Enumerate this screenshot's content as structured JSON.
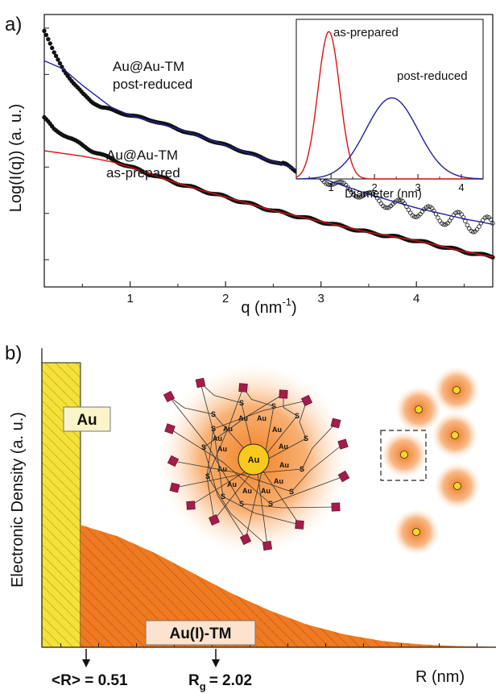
{
  "panel_a": {
    "label": "a)",
    "ylabel": "Log(I(q)) (a. u.)",
    "xlabel_main": "q (nm",
    "xlabel_sup": "-1",
    "xlabel_close": ")",
    "annot_post_line1": "Au@Au-TM",
    "annot_post_line2": "post-reduced",
    "annot_asp_line1": "Au@Au-TM",
    "annot_asp_line2": "as-prepared",
    "inset": {
      "xlabel": "Diameter (nm)",
      "label_asp": "as-prepared",
      "label_post": "post-reduced"
    }
  },
  "panel_b": {
    "label": "b)",
    "ylabel": "Electronic Density (a. u.)",
    "au_box": "Au",
    "auI_box": "Au(I)-TM",
    "core_label": "Au",
    "s_letter": "S",
    "au_letter": "Au",
    "r_marker": "<R> = 0.51",
    "rg_main": "R",
    "rg_sub": "g",
    "rg_value": "= 2.02",
    "xlabel": "R (nm)"
  },
  "colors": {
    "data_points": "#111111",
    "fit_asp": "#dd1111",
    "fit_post": "#22229a",
    "gold_fill": "#f3e23a",
    "shell_fill": "#ef7a22",
    "mol_rect": "#a31d4a"
  },
  "chart_data": [
    {
      "type": "scatter",
      "title": "",
      "xlabel": "q (nm-1)",
      "ylabel": "Log(I(q)) (a. u.)",
      "xlim": [
        0.1,
        4.8
      ],
      "ylim": [
        0.0,
        1.0
      ],
      "y_tick_labels": "none",
      "x_ticks": [
        1,
        2,
        3,
        4
      ],
      "legend": "none",
      "grid": false,
      "series": [
        {
          "name": "Au@Au-TM post-reduced",
          "x": [
            0.1,
            0.2,
            0.3,
            0.4,
            0.5,
            0.6,
            0.7,
            0.8,
            1.0,
            1.25,
            1.5,
            1.75,
            2.0,
            2.5,
            3.0,
            3.5,
            4.0,
            4.5,
            4.8
          ],
          "y": [
            0.94,
            0.86,
            0.8,
            0.75,
            0.71,
            0.68,
            0.66,
            0.65,
            0.63,
            0.61,
            0.58,
            0.55,
            0.52,
            0.46,
            0.4,
            0.33,
            0.28,
            0.24,
            0.22
          ]
        },
        {
          "name": "Au@Au-TM as-prepared",
          "x": [
            0.1,
            0.2,
            0.3,
            0.4,
            0.5,
            0.6,
            0.7,
            0.8,
            1.0,
            1.5,
            2.0,
            2.5,
            3.0,
            3.5,
            4.0,
            4.5,
            4.8
          ],
          "y": [
            0.62,
            0.58,
            0.56,
            0.54,
            0.52,
            0.5,
            0.485,
            0.47,
            0.44,
            0.38,
            0.33,
            0.28,
            0.24,
            0.2,
            0.17,
            0.13,
            0.11
          ]
        }
      ]
    },
    {
      "type": "line",
      "title": "",
      "xlabel": "",
      "ylabel": "Log(I(q)) (a. u.)",
      "xlim": [
        0.1,
        4.8
      ],
      "ylim": [
        0.0,
        1.0
      ],
      "series": [
        {
          "name": "post-reduced fit",
          "x": [
            0.1,
            0.3,
            0.5,
            0.8,
            1.0,
            1.5,
            2.0,
            2.5,
            3.0,
            3.5,
            4.0,
            4.5,
            4.8
          ],
          "y": [
            0.83,
            0.8,
            0.74,
            0.66,
            0.63,
            0.58,
            0.52,
            0.46,
            0.4,
            0.34,
            0.29,
            0.25,
            0.23
          ]
        },
        {
          "name": "as-prepared fit",
          "x": [
            0.1,
            0.3,
            0.5,
            0.8,
            1.0,
            1.5,
            2.0,
            2.5,
            3.0,
            3.5,
            4.0,
            4.5,
            4.8
          ],
          "y": [
            0.5,
            0.49,
            0.48,
            0.46,
            0.44,
            0.38,
            0.33,
            0.28,
            0.24,
            0.2,
            0.17,
            0.13,
            0.11
          ]
        }
      ]
    },
    {
      "type": "line",
      "title": "",
      "xlabel": "Diameter (nm)",
      "ylabel": "",
      "xlim": [
        0.2,
        4.5
      ],
      "ylim": [
        0,
        1.05
      ],
      "x_ticks": [
        1,
        2,
        3,
        4
      ],
      "series": [
        {
          "name": "as-prepared",
          "mean": 0.95,
          "sigma": 0.25,
          "x": [
            0.2,
            0.4,
            0.6,
            0.8,
            0.95,
            1.1,
            1.3,
            1.5,
            1.8,
            2.2,
            4.5
          ],
          "y": [
            0.01,
            0.09,
            0.37,
            0.84,
            1.0,
            0.84,
            0.42,
            0.13,
            0.01,
            0.0,
            0.0
          ]
        },
        {
          "name": "post-reduced",
          "mean": 2.4,
          "sigma": 0.6,
          "x": [
            0.2,
            0.8,
            1.2,
            1.6,
            2.0,
            2.4,
            2.8,
            3.2,
            3.6,
            4.0,
            4.5
          ],
          "y": [
            0.0,
            0.02,
            0.09,
            0.24,
            0.44,
            0.55,
            0.44,
            0.24,
            0.09,
            0.02,
            0.0
          ]
        }
      ]
    },
    {
      "type": "area",
      "title": "",
      "xlabel": "R (nm)",
      "ylabel": "Electronic Density (a. u.)",
      "xlim": [
        0,
        6.0
      ],
      "ylim": [
        0,
        1.0
      ],
      "series": [
        {
          "name": "Au",
          "x": [
            0,
            0.51
          ],
          "y": [
            1.0,
            1.0
          ]
        },
        {
          "name": "Au(I)-TM",
          "x": [
            0.51,
            1.0,
            1.5,
            2.0,
            2.5,
            3.0,
            3.5,
            4.0,
            4.5,
            5.0,
            5.5,
            6.0
          ],
          "y": [
            0.43,
            0.39,
            0.33,
            0.26,
            0.19,
            0.13,
            0.08,
            0.045,
            0.022,
            0.01,
            0.004,
            0.002
          ]
        }
      ],
      "annotations": [
        {
          "label": "<R> = 0.51",
          "x": 0.51
        },
        {
          "label": "Rg = 2.02",
          "x": 2.02
        }
      ]
    }
  ]
}
